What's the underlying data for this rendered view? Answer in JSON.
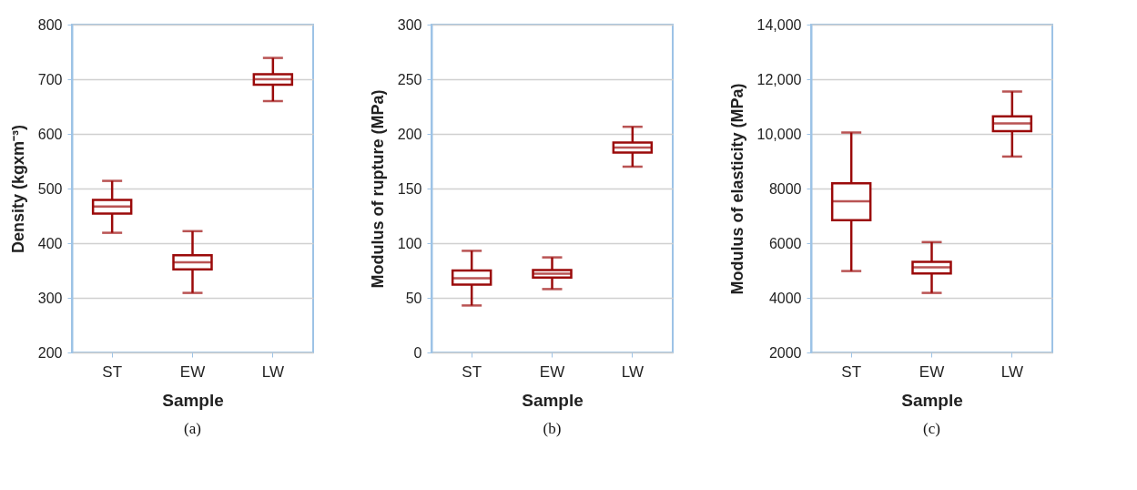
{
  "chart_data": [
    {
      "type": "box",
      "categories": [
        "ST",
        "EW",
        "LW"
      ],
      "xlabel": "Sample",
      "ylabel": "Density (kgxm⁻³)",
      "ylim": [
        200,
        800
      ],
      "yticks": [
        200,
        300,
        400,
        500,
        600,
        700,
        800
      ],
      "grid": "y",
      "annotations": [
        "(a)"
      ],
      "series": [
        {
          "color": "#9b0a0a",
          "boxes": [
            {
              "low": 419,
              "q1": 454,
              "median": 467,
              "q3": 479,
              "high": 514
            },
            {
              "low": 309,
              "q1": 352,
              "median": 365,
              "q3": 378,
              "high": 422
            },
            {
              "low": 660,
              "q1": 690,
              "median": 700,
              "q3": 709,
              "high": 739
            }
          ]
        }
      ]
    },
    {
      "type": "box",
      "categories": [
        "ST",
        "EW",
        "LW"
      ],
      "xlabel": "Sample",
      "ylabel": "Modulus of rupture (MPa)",
      "ylim": [
        0,
        300
      ],
      "yticks": [
        0,
        50,
        100,
        150,
        200,
        250,
        300
      ],
      "grid": "y",
      "annotations": [
        "(b)"
      ],
      "series": [
        {
          "color": "#9b0a0a",
          "boxes": [
            {
              "low": 43,
              "q1": 62,
              "median": 68,
              "q3": 75,
              "high": 93
            },
            {
              "low": 58,
              "q1": 68.5,
              "median": 72,
              "q3": 75.5,
              "high": 87
            },
            {
              "low": 170,
              "q1": 183,
              "median": 187.5,
              "q3": 192,
              "high": 206.5
            }
          ]
        }
      ]
    },
    {
      "type": "box",
      "categories": [
        "ST",
        "EW",
        "LW"
      ],
      "xlabel": "Sample",
      "ylabel": "Modulus of elasticity (MPa)",
      "ylim": [
        2000,
        14000
      ],
      "yticks": [
        2000,
        4000,
        6000,
        8000,
        {
          "value": 10000,
          "label": "10,000"
        },
        {
          "value": 12000,
          "label": "12,000"
        },
        {
          "value": 14000,
          "label": "14,000"
        }
      ],
      "grid": "y",
      "annotations": [
        "(c)"
      ],
      "series": [
        {
          "color": "#9b0a0a",
          "boxes": [
            {
              "low": 4980,
              "q1": 6840,
              "median": 7530,
              "q3": 8190,
              "high": 10050
            },
            {
              "low": 4180,
              "q1": 4890,
              "median": 5120,
              "q3": 5320,
              "high": 6040
            },
            {
              "low": 9170,
              "q1": 10100,
              "median": 10380,
              "q3": 10640,
              "high": 11550
            }
          ]
        }
      ]
    }
  ]
}
